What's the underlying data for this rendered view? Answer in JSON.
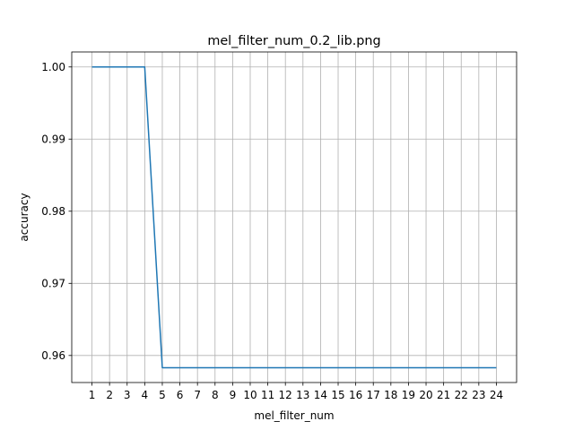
{
  "chart_data": {
    "type": "line",
    "title": "mel_filter_num_0.2_lib.png",
    "xlabel": "mel_filter_num",
    "ylabel": "accuracy",
    "x": [
      1,
      2,
      3,
      4,
      5,
      6,
      7,
      8,
      9,
      10,
      11,
      12,
      13,
      14,
      15,
      16,
      17,
      18,
      19,
      20,
      21,
      22,
      23,
      24
    ],
    "series": [
      {
        "name": "",
        "color": "#1f77b4",
        "values": [
          1.0,
          1.0,
          1.0,
          1.0,
          0.9583,
          0.9583,
          0.9583,
          0.9583,
          0.9583,
          0.9583,
          0.9583,
          0.9583,
          0.9583,
          0.9583,
          0.9583,
          0.9583,
          0.9583,
          0.9583,
          0.9583,
          0.9583,
          0.9583,
          0.9583,
          0.9583,
          0.9583
        ]
      }
    ],
    "xticks": [
      "1",
      "2",
      "3",
      "4",
      "5",
      "6",
      "7",
      "8",
      "9",
      "10",
      "11",
      "12",
      "13",
      "14",
      "15",
      "16",
      "17",
      "18",
      "19",
      "20",
      "21",
      "22",
      "23",
      "24"
    ],
    "yticks": [
      0.96,
      0.97,
      0.98,
      0.99,
      1.0
    ],
    "ytick_labels": [
      "0.96",
      "0.97",
      "0.98",
      "0.99",
      "1.00"
    ],
    "xlim": [
      -0.15,
      25.15
    ],
    "ylim": [
      0.95625,
      1.00208
    ],
    "grid": true
  }
}
